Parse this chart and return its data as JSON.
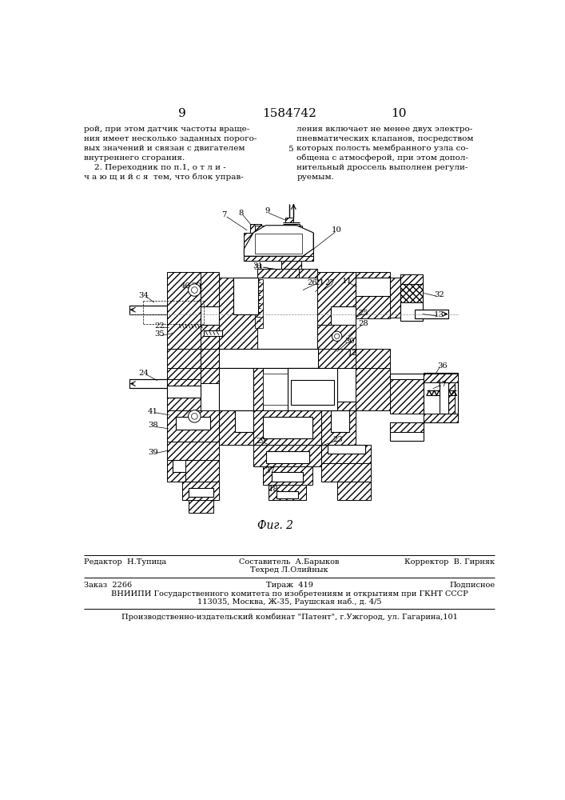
{
  "page_numbers": [
    "9",
    "10"
  ],
  "patent_number": "1584742",
  "col1_text": [
    "рой, при этом датчик частоты враще-",
    "ния имеет несколько заданных порого-",
    "вых значений и связан с двигателем",
    "внутреннего сгорания.",
    "    2. Переходник по п.1, о т л и -",
    "ч а ю щ и й с я  тем, что блок управ-"
  ],
  "line5_num": "5",
  "col2_text": [
    "ления включает не менее двух электро-",
    "пневматических клапанов, посредством",
    "которых полость мембранного узла со-",
    "общена с атмосферой, при этом допол-",
    "нительный дроссель выполнен регули-",
    "руемым."
  ],
  "fig_caption": "Фиг. 2",
  "bg_color": "#ffffff",
  "text_color": "#000000"
}
